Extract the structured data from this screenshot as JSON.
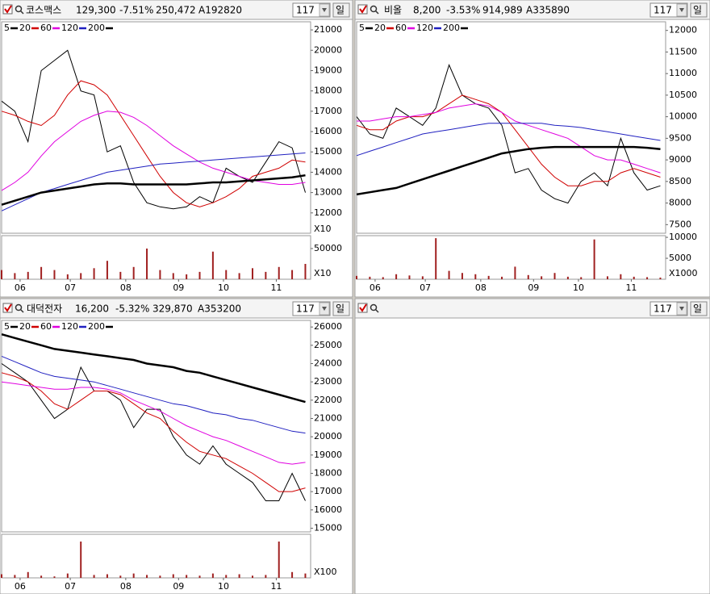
{
  "chart_data": [
    {
      "type": "line",
      "name": "코스맥스",
      "price": "129,300",
      "change": "-7.51%",
      "volume_text": "250,472",
      "code": "A192820",
      "period": "117",
      "unit": "일",
      "x": [
        0,
        5,
        10,
        15,
        20,
        25,
        30,
        35,
        40,
        45,
        50,
        55,
        60,
        65,
        70,
        75,
        80,
        85,
        90,
        95,
        100,
        105,
        110,
        115
      ],
      "xlim": [
        0,
        117
      ],
      "xticks": [
        {
          "value": 7,
          "label": "06"
        },
        {
          "value": 26,
          "label": "07"
        },
        {
          "value": 47,
          "label": "08"
        },
        {
          "value": 67,
          "label": "09"
        },
        {
          "value": 84,
          "label": "10"
        },
        {
          "value": 104,
          "label": "11"
        }
      ],
      "ylim": [
        11000,
        21400
      ],
      "yticks": [
        21000,
        20000,
        19000,
        18000,
        17000,
        16000,
        15000,
        14000,
        13000,
        12000
      ],
      "price_multiplier": "X10",
      "series": [
        {
          "name": "5",
          "color": "#000000",
          "values": [
            17500,
            17000,
            15500,
            19000,
            19500,
            20000,
            18000,
            17800,
            15000,
            15300,
            13500,
            12500,
            12300,
            12200,
            12300,
            12800,
            12500,
            14200,
            13800,
            13500,
            14500,
            15500,
            15200,
            13000
          ]
        },
        {
          "name": "20",
          "color": "#d00000",
          "values": [
            17000,
            16800,
            16500,
            16300,
            16800,
            17800,
            18500,
            18300,
            17800,
            16800,
            15800,
            14800,
            13800,
            13000,
            12500,
            12300,
            12500,
            12800,
            13200,
            13800,
            14000,
            14200,
            14600,
            14500
          ]
        },
        {
          "name": "60",
          "color": "#e000e0",
          "values": [
            13100,
            13500,
            14000,
            14800,
            15500,
            16000,
            16500,
            16800,
            17000,
            16950,
            16700,
            16300,
            15800,
            15300,
            14900,
            14500,
            14200,
            14000,
            13800,
            13600,
            13500,
            13400,
            13400,
            13500
          ]
        },
        {
          "name": "120",
          "color": "#2020c0",
          "values": [
            12100,
            12400,
            12700,
            13000,
            13200,
            13400,
            13600,
            13800,
            14000,
            14100,
            14200,
            14300,
            14400,
            14450,
            14500,
            14550,
            14600,
            14650,
            14700,
            14750,
            14800,
            14850,
            14900,
            14950
          ]
        },
        {
          "name": "200",
          "color": "#000000",
          "values": [
            12400,
            12600,
            12800,
            13000,
            13100,
            13200,
            13300,
            13400,
            13450,
            13450,
            13400,
            13400,
            13400,
            13400,
            13400,
            13450,
            13500,
            13500,
            13550,
            13600,
            13650,
            13700,
            13750,
            13850
          ]
        }
      ],
      "volume": {
        "color": "#a02020",
        "ylim": [
          0,
          71000
        ],
        "yticks": [
          50000
        ],
        "multiplier": "X10",
        "values": [
          15000,
          10000,
          12000,
          20000,
          15000,
          8000,
          10000,
          18000,
          30000,
          12000,
          20000,
          50000,
          15000,
          10000,
          8000,
          12000,
          45000,
          15000,
          10000,
          18000,
          12000,
          20000,
          15000,
          25000
        ]
      }
    },
    {
      "type": "line",
      "name": "비올",
      "price": "8,200",
      "change": "-3.53%",
      "volume_text": "914,989",
      "code": "A335890",
      "period": "117",
      "unit": "일",
      "x": [
        0,
        5,
        10,
        15,
        20,
        25,
        30,
        35,
        40,
        45,
        50,
        55,
        60,
        65,
        70,
        75,
        80,
        85,
        90,
        95,
        100,
        105,
        110,
        115
      ],
      "xlim": [
        0,
        117
      ],
      "xticks": [
        {
          "value": 7,
          "label": "06"
        },
        {
          "value": 26,
          "label": "07"
        },
        {
          "value": 47,
          "label": "08"
        },
        {
          "value": 67,
          "label": "09"
        },
        {
          "value": 84,
          "label": "10"
        },
        {
          "value": 104,
          "label": "11"
        }
      ],
      "ylim": [
        7300,
        12200
      ],
      "yticks": [
        12000,
        11500,
        11000,
        10500,
        10000,
        9500,
        9000,
        8500,
        8000,
        7500
      ],
      "series": [
        {
          "name": "5",
          "color": "#000000",
          "values": [
            10000,
            9600,
            9500,
            10200,
            10000,
            9800,
            10200,
            11200,
            10500,
            10300,
            10200,
            9800,
            8700,
            8800,
            8300,
            8100,
            8000,
            8500,
            8700,
            8400,
            9500,
            8700,
            8300,
            8400
          ]
        },
        {
          "name": "20",
          "color": "#d00000",
          "values": [
            9800,
            9700,
            9700,
            9900,
            10000,
            10000,
            10100,
            10300,
            10500,
            10400,
            10300,
            10100,
            9700,
            9300,
            8900,
            8600,
            8400,
            8400,
            8500,
            8500,
            8700,
            8800,
            8700,
            8600
          ]
        },
        {
          "name": "60",
          "color": "#e000e0",
          "values": [
            9900,
            9900,
            9950,
            10000,
            10000,
            10050,
            10100,
            10200,
            10250,
            10300,
            10250,
            10100,
            9900,
            9800,
            9700,
            9600,
            9500,
            9300,
            9100,
            9000,
            9000,
            8900,
            8800,
            8700
          ]
        },
        {
          "name": "120",
          "color": "#2020c0",
          "values": [
            9100,
            9200,
            9300,
            9400,
            9500,
            9600,
            9650,
            9700,
            9750,
            9800,
            9850,
            9850,
            9850,
            9850,
            9850,
            9800,
            9780,
            9750,
            9700,
            9650,
            9600,
            9550,
            9500,
            9450
          ]
        },
        {
          "name": "200",
          "color": "#000000",
          "values": [
            8200,
            8250,
            8300,
            8350,
            8450,
            8550,
            8650,
            8750,
            8850,
            8950,
            9050,
            9150,
            9200,
            9250,
            9280,
            9300,
            9300,
            9300,
            9300,
            9300,
            9300,
            9300,
            9280,
            9250
          ]
        }
      ],
      "volume": {
        "color": "#a02020",
        "ylim": [
          0,
          10400
        ],
        "yticks": [
          10000,
          5000
        ],
        "multiplier": "X1000",
        "values": [
          800,
          600,
          500,
          1200,
          900,
          700,
          9800,
          2000,
          1500,
          1200,
          800,
          600,
          3000,
          1000,
          700,
          1500,
          600,
          500,
          9500,
          700,
          1200,
          600,
          500,
          400
        ]
      }
    },
    {
      "type": "line",
      "name": "대덕전자",
      "price": "16,200",
      "change": "-5.32%",
      "volume_text": "329,870",
      "code": "A353200",
      "period": "117",
      "unit": "일",
      "x": [
        0,
        5,
        10,
        15,
        20,
        25,
        30,
        35,
        40,
        45,
        50,
        55,
        60,
        65,
        70,
        75,
        80,
        85,
        90,
        95,
        100,
        105,
        110,
        115
      ],
      "xlim": [
        0,
        117
      ],
      "xticks": [
        {
          "value": 7,
          "label": "06"
        },
        {
          "value": 26,
          "label": "07"
        },
        {
          "value": 47,
          "label": "08"
        },
        {
          "value": 67,
          "label": "09"
        },
        {
          "value": 84,
          "label": "10"
        },
        {
          "value": 104,
          "label": "11"
        }
      ],
      "ylim": [
        14800,
        26360
      ],
      "yticks": [
        26000,
        25000,
        24000,
        23000,
        22000,
        21000,
        20000,
        19000,
        18000,
        17000,
        16000,
        15000
      ],
      "series": [
        {
          "name": "5",
          "color": "#000000",
          "values": [
            24000,
            23500,
            23000,
            22000,
            21000,
            21500,
            23800,
            22500,
            22500,
            22000,
            20500,
            21500,
            21500,
            20000,
            19000,
            18500,
            19500,
            18500,
            18000,
            17500,
            16500,
            16500,
            18000,
            16500
          ]
        },
        {
          "name": "20",
          "color": "#d00000",
          "values": [
            23500,
            23300,
            23000,
            22500,
            21800,
            21500,
            22000,
            22500,
            22500,
            22300,
            21800,
            21300,
            21000,
            20300,
            19700,
            19200,
            19000,
            18800,
            18400,
            18000,
            17500,
            17000,
            17000,
            17200
          ]
        },
        {
          "name": "60",
          "color": "#e000e0",
          "values": [
            23000,
            22900,
            22800,
            22700,
            22600,
            22600,
            22700,
            22700,
            22600,
            22400,
            22000,
            21700,
            21400,
            21000,
            20600,
            20300,
            20000,
            19800,
            19500,
            19200,
            18900,
            18600,
            18500,
            18600
          ]
        },
        {
          "name": "120",
          "color": "#2020c0",
          "values": [
            24400,
            24100,
            23800,
            23500,
            23300,
            23200,
            23100,
            23000,
            22800,
            22600,
            22400,
            22200,
            22000,
            21800,
            21700,
            21500,
            21300,
            21200,
            21000,
            20900,
            20700,
            20500,
            20300,
            20200
          ]
        },
        {
          "name": "200",
          "color": "#000000",
          "values": [
            25600,
            25400,
            25200,
            25000,
            24800,
            24700,
            24600,
            24500,
            24400,
            24300,
            24200,
            24000,
            23900,
            23800,
            23600,
            23500,
            23300,
            23100,
            22900,
            22700,
            22500,
            22300,
            22100,
            21900
          ]
        }
      ],
      "volume": {
        "color": "#a02020",
        "ylim": [
          0,
          60
        ],
        "yticks": [],
        "multiplier": "X100",
        "values": [
          5,
          4,
          8,
          3,
          2,
          6,
          50,
          4,
          5,
          3,
          6,
          4,
          3,
          5,
          4,
          3,
          6,
          4,
          5,
          3,
          4,
          50,
          8,
          6
        ]
      }
    }
  ],
  "empty_panel": {
    "period": "117",
    "unit": "일"
  }
}
